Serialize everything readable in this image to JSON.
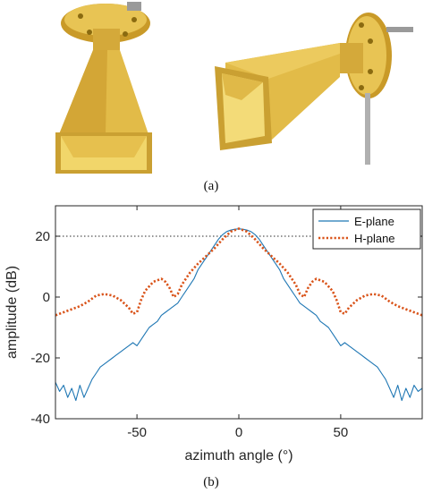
{
  "figure": {
    "caption_a": "(a)",
    "caption_b": "(b)",
    "photo": {
      "colors": {
        "gold": "#d9b03a",
        "gold_light": "#f0d36a",
        "gold_dark": "#a8801c",
        "bolt": "#c0c0c0"
      }
    }
  },
  "chart_data": {
    "type": "line",
    "xlabel": "azimuth angle (°)",
    "ylabel": "amplitude (dB)",
    "xlim": [
      -90,
      90
    ],
    "ylim": [
      -40,
      30
    ],
    "xticks": [
      -50,
      0,
      50
    ],
    "yticks": [
      -40,
      -20,
      0,
      20
    ],
    "grid": false,
    "legend_position": "top-right",
    "reference_line": {
      "y": 20,
      "style": "dotted",
      "color": "#555555"
    },
    "series": [
      {
        "name": "E-plane",
        "color": "#1f77b4",
        "style": "solid",
        "x": [
          -90,
          -88,
          -86,
          -84,
          -82,
          -80,
          -78,
          -76,
          -74,
          -72,
          -70,
          -68,
          -66,
          -64,
          -62,
          -60,
          -58,
          -56,
          -54,
          -52,
          -50,
          -48,
          -46,
          -44,
          -42,
          -40,
          -38,
          -36,
          -34,
          -32,
          -30,
          -28,
          -26,
          -24,
          -22,
          -20,
          -18,
          -16,
          -14,
          -12,
          -10,
          -8,
          -6,
          -4,
          -2,
          0,
          2,
          4,
          6,
          8,
          10,
          12,
          14,
          16,
          18,
          20,
          22,
          24,
          26,
          28,
          30,
          32,
          34,
          36,
          38,
          40,
          42,
          44,
          46,
          48,
          50,
          52,
          54,
          56,
          58,
          60,
          62,
          64,
          66,
          68,
          70,
          72,
          74,
          76,
          78,
          80,
          82,
          84,
          86,
          88,
          90
        ],
        "values": [
          -28,
          -31,
          -29,
          -33,
          -30,
          -34,
          -29,
          -33,
          -30,
          -27,
          -25,
          -23,
          -22,
          -21,
          -20,
          -19,
          -18,
          -17,
          -16,
          -15,
          -16,
          -14,
          -12,
          -10,
          -9,
          -8,
          -6,
          -5,
          -4,
          -3,
          -2,
          0,
          2,
          4,
          6,
          9,
          11,
          13,
          15,
          17,
          19,
          20.5,
          21.5,
          22,
          22.3,
          22.4,
          22.3,
          22,
          21.5,
          20.5,
          19,
          17,
          15,
          13,
          11,
          9,
          6,
          4,
          2,
          0,
          -2,
          -3,
          -4,
          -5,
          -6,
          -8,
          -9,
          -10,
          -12,
          -14,
          -16,
          -15,
          -16,
          -17,
          -18,
          -19,
          -20,
          -21,
          -22,
          -23,
          -25,
          -27,
          -30,
          -33,
          -29,
          -34,
          -30,
          -33,
          -29,
          -31,
          -30
        ]
      },
      {
        "name": "H-plane",
        "color": "#d95319",
        "style": "dotted",
        "x": [
          -90,
          -86,
          -82,
          -78,
          -74,
          -70,
          -66,
          -62,
          -58,
          -54,
          -52,
          -50,
          -48,
          -46,
          -42,
          -38,
          -36,
          -34,
          -32,
          -30,
          -28,
          -24,
          -20,
          -16,
          -12,
          -8,
          -4,
          0,
          4,
          8,
          12,
          16,
          20,
          24,
          28,
          30,
          32,
          34,
          36,
          38,
          42,
          46,
          48,
          50,
          52,
          54,
          58,
          62,
          66,
          70,
          74,
          78,
          82,
          86,
          90
        ],
        "values": [
          -6,
          -5,
          -4,
          -3,
          -1.5,
          0.5,
          1,
          0.5,
          -1,
          -3.5,
          -5.5,
          -5,
          -1,
          2,
          5,
          6,
          5,
          3,
          0,
          1,
          4,
          8,
          11,
          13.5,
          16,
          19,
          21.5,
          22.5,
          21.5,
          19,
          16,
          13.5,
          11,
          8,
          4,
          1,
          0,
          3,
          5,
          6,
          5,
          2,
          -1,
          -5,
          -5.5,
          -3.5,
          -1,
          0.5,
          1,
          0.5,
          -1.5,
          -3,
          -4,
          -5,
          -6
        ]
      }
    ]
  }
}
